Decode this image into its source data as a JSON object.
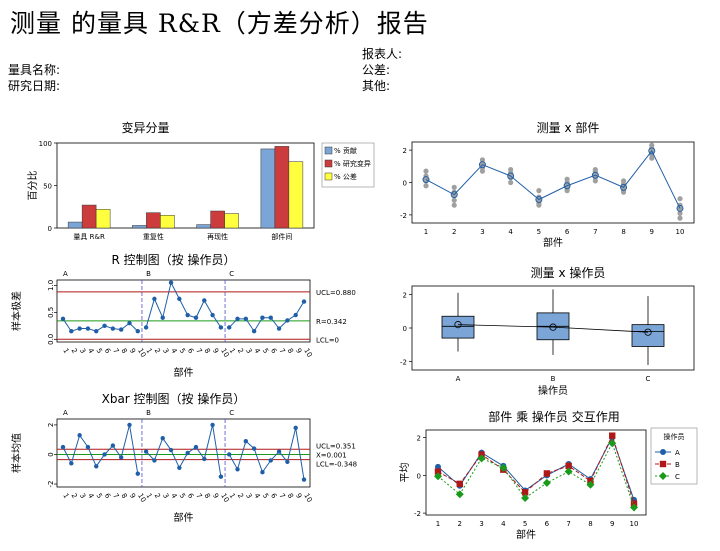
{
  "report": {
    "title": "测量 的量具 R&R（方差分析）报告",
    "gauge_name_label": "量具名称:",
    "study_date_label": "研究日期:",
    "reporter_label": "报表人:",
    "tolerance_label": "公差:",
    "other_label": "其他:"
  },
  "chart_data": [
    {
      "id": "components",
      "type": "bar",
      "title": "变异分量",
      "ylabel": "百分比",
      "ylim": [
        0,
        100
      ],
      "yticks": [
        0,
        50,
        100
      ],
      "categories": [
        "量具 R&R",
        "重复性",
        "再现性",
        "部件间"
      ],
      "series": [
        {
          "name": "% 贡献",
          "color": "#7aa5d6",
          "values": [
            7,
            3,
            4,
            93
          ]
        },
        {
          "name": "% 研究变异",
          "color": "#cc3c3c",
          "values": [
            27,
            18,
            20,
            96
          ]
        },
        {
          "name": "% 公差",
          "color": "#ffff40",
          "values": [
            22,
            15,
            17,
            78
          ]
        }
      ],
      "legend": "right"
    },
    {
      "id": "by-part",
      "type": "scatter",
      "title": "测量 x 部件",
      "xlabel": "部件",
      "xticks": [
        1,
        2,
        3,
        4,
        5,
        6,
        7,
        8,
        9,
        10
      ],
      "ylim": [
        -2.5,
        2.5
      ],
      "yticks": [
        -2,
        0,
        2
      ],
      "means": [
        0.18,
        -0.75,
        1.1,
        0.4,
        -1.05,
        -0.2,
        0.45,
        -0.3,
        1.95,
        -1.6
      ],
      "points": [
        [
          0.7,
          0.4,
          0.2,
          0.1,
          -0.2
        ],
        [
          -0.3,
          -0.6,
          -0.8,
          -1.1,
          -1.4
        ],
        [
          1.4,
          1.2,
          1.1,
          0.9,
          0.7
        ],
        [
          0.8,
          0.6,
          0.4,
          0.3,
          0.0
        ],
        [
          -0.5,
          -0.9,
          -1.1,
          -1.3,
          -1.4
        ],
        [
          0.2,
          0.0,
          -0.2,
          -0.4,
          -0.5
        ],
        [
          0.8,
          0.7,
          0.5,
          0.3,
          0.1
        ],
        [
          0.1,
          -0.1,
          -0.3,
          -0.5,
          -0.6
        ],
        [
          2.3,
          2.1,
          1.9,
          1.7,
          1.5
        ],
        [
          -1.0,
          -1.4,
          -1.6,
          -1.9,
          -2.2
        ]
      ],
      "color": "#1f5fa8"
    },
    {
      "id": "r-chart",
      "type": "line",
      "title": "R 控制图（按 操作员）",
      "xlabel": "部件",
      "ylabel": "样本极差",
      "ylim": [
        -0.05,
        1.1
      ],
      "yticks": [
        0.0,
        0.5,
        1.0
      ],
      "ytick_labels": [
        "0.0",
        "0.5",
        "1.0"
      ],
      "groups": [
        "A",
        "B",
        "C"
      ],
      "xtick_labels": [
        "1",
        "2",
        "3",
        "4",
        "5",
        "6",
        "7",
        "8",
        "9",
        "10",
        "1",
        "2",
        "3",
        "4",
        "5",
        "6",
        "7",
        "8",
        "9",
        "10",
        "1",
        "2",
        "3",
        "4",
        "5",
        "6",
        "7",
        "8",
        "9",
        "10"
      ],
      "values": [
        0.38,
        0.15,
        0.2,
        0.2,
        0.15,
        0.25,
        0.2,
        0.18,
        0.3,
        0.15,
        0.22,
        0.75,
        0.4,
        1.05,
        0.75,
        0.45,
        0.4,
        0.72,
        0.45,
        0.22,
        0.22,
        0.38,
        0.38,
        0.15,
        0.4,
        0.4,
        0.2,
        0.35,
        0.45,
        0.7
      ],
      "ucl": 0.88,
      "center": 0.342,
      "lcl": 0,
      "ucl_label": "UCL=0.880",
      "center_label": "R=0.342",
      "lcl_label": "LCL=0",
      "color": "#1f5fa8"
    },
    {
      "id": "operator",
      "type": "box",
      "title": "测量 x 操作员",
      "xlabel": "操作员",
      "categories": [
        "A",
        "B",
        "C"
      ],
      "ylim": [
        -2.5,
        2.5
      ],
      "yticks": [
        -2,
        0,
        2
      ],
      "boxes": [
        {
          "min": -1.4,
          "q1": -0.6,
          "median": 0.1,
          "q3": 0.7,
          "max": 2.1,
          "mean": 0.2
        },
        {
          "min": -1.6,
          "q1": -0.7,
          "median": 0.1,
          "q3": 0.9,
          "max": 2.3,
          "mean": 0.05
        },
        {
          "min": -2.2,
          "q1": -1.1,
          "median": -0.2,
          "q3": 0.2,
          "max": 1.9,
          "mean": -0.25
        }
      ],
      "color": "#7aa5d6"
    },
    {
      "id": "xbar-chart",
      "type": "line",
      "title": "Xbar 控制图（按 操作员）",
      "xlabel": "部件",
      "ylabel": "样本均值",
      "ylim": [
        -2.2,
        2.4
      ],
      "yticks": [
        -2,
        0,
        2
      ],
      "groups": [
        "A",
        "B",
        "C"
      ],
      "xtick_labels": [
        "1",
        "2",
        "3",
        "4",
        "5",
        "6",
        "7",
        "8",
        "9",
        "10",
        "1",
        "2",
        "3",
        "4",
        "5",
        "6",
        "7",
        "8",
        "9",
        "10",
        "1",
        "2",
        "3",
        "4",
        "5",
        "6",
        "7",
        "8",
        "9",
        "10"
      ],
      "values": [
        0.5,
        -0.6,
        1.3,
        0.5,
        -0.8,
        0.0,
        0.6,
        -0.2,
        2.0,
        -1.3,
        0.2,
        -0.4,
        1.1,
        0.3,
        -0.9,
        0.1,
        0.5,
        -0.3,
        2.0,
        -1.5,
        0.0,
        -1.0,
        0.9,
        0.4,
        -1.2,
        -0.4,
        0.2,
        -0.5,
        1.8,
        -1.7
      ],
      "ucl": 0.351,
      "center": 0.001,
      "lcl": -0.348,
      "ucl_label": "UCL=0.351",
      "center_label": "X=0.001",
      "lcl_label": "LCL=-0.348",
      "color": "#1f5fa8"
    },
    {
      "id": "interaction",
      "type": "line",
      "title": "部件 乘 操作员 交互作用",
      "xlabel": "部件",
      "ylabel": "平均",
      "x": [
        1,
        2,
        3,
        4,
        5,
        6,
        7,
        8,
        9,
        10
      ],
      "ylim": [
        -2.1,
        2.4
      ],
      "yticks": [
        -2,
        0,
        2
      ],
      "legend_title": "操作员",
      "series": [
        {
          "name": "A",
          "color": "#1f5fa8",
          "marker": "circle",
          "values": [
            0.45,
            -0.55,
            1.2,
            0.5,
            -0.8,
            0.0,
            0.6,
            -0.2,
            2.0,
            -1.3
          ]
        },
        {
          "name": "B",
          "color": "#b01818",
          "marker": "square",
          "values": [
            0.2,
            -0.45,
            1.1,
            0.3,
            -0.9,
            0.1,
            0.5,
            -0.3,
            2.1,
            -1.5
          ]
        },
        {
          "name": "C",
          "color": "#1a9a1a",
          "marker": "diamond",
          "values": [
            -0.05,
            -1.0,
            0.9,
            0.4,
            -1.2,
            -0.4,
            0.2,
            -0.5,
            1.7,
            -1.7
          ]
        }
      ],
      "legend": "right"
    }
  ]
}
